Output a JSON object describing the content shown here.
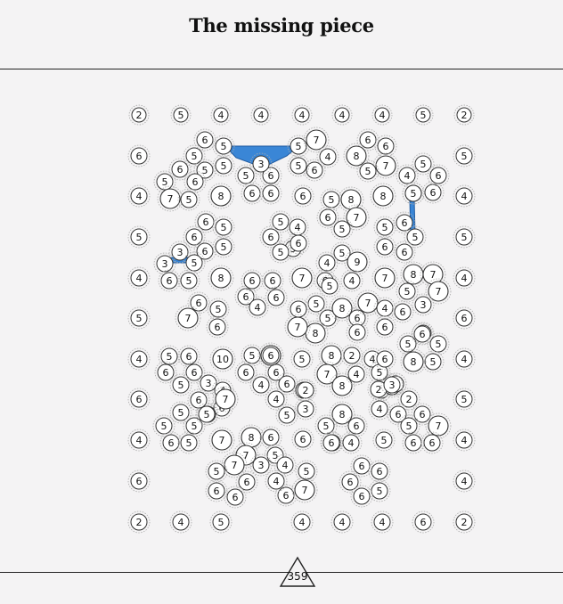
{
  "title": "The missing piece",
  "page_number": "359",
  "bridge_color": "#3a86d6",
  "border_values": {
    "top": [
      "2",
      "5",
      "4",
      "4",
      "4",
      "4",
      "4",
      "5",
      "2"
    ],
    "left": [
      "6",
      "4",
      "5",
      "4",
      "5",
      "4",
      "6",
      "4",
      "6"
    ],
    "right": [
      "5",
      "4",
      "5",
      "4",
      "6",
      "4",
      "5",
      "4",
      "4"
    ],
    "bottom": [
      "2",
      "4",
      "5",
      "4",
      "4",
      "4",
      "6",
      "2"
    ]
  },
  "islands": [
    [
      "6",
      "5",
      "5",
      "5",
      "6",
      "5",
      "6",
      "5",
      "7",
      "5",
      "8",
      "6",
      "5",
      "6",
      "6",
      "5",
      "3",
      "5",
      "3",
      "6",
      "5",
      "8"
    ],
    [
      "5",
      "7",
      "4",
      "6",
      "5",
      "6",
      "5",
      "3",
      "6",
      "6",
      "6",
      "5",
      "8",
      "8",
      "6",
      "6",
      "8",
      "7",
      "5",
      "5",
      "6",
      "5",
      "6",
      "4",
      "5"
    ],
    [
      "7",
      "6",
      "5",
      "5",
      "6",
      "5",
      "6",
      "6",
      "5",
      "6",
      "4",
      "5",
      "5",
      "6",
      "5",
      "9",
      "4",
      "6",
      "4",
      "7",
      "8",
      "7",
      "7",
      "5",
      "3"
    ],
    [
      "6",
      "5",
      "6",
      "7",
      "6",
      "6",
      "6",
      "4",
      "6",
      "7",
      "5",
      "6",
      "5",
      "8",
      "5",
      "6",
      "7",
      "4",
      "6",
      "6",
      "8",
      "7",
      "6",
      "5"
    ],
    [
      "5",
      "6",
      "6",
      "6",
      "5",
      "10",
      "5",
      "7",
      "6",
      "6",
      "4",
      "6",
      "6",
      "5",
      "4",
      "5",
      "8",
      "2",
      "7",
      "8",
      "4",
      "4",
      "2",
      "3",
      "3",
      "5"
    ],
    [
      "5",
      "6",
      "5",
      "5",
      "8",
      "6",
      "6",
      "2",
      "3",
      "2",
      "4",
      "8",
      "6",
      "5",
      "5",
      "4",
      "2",
      "3",
      "5",
      "3",
      "4",
      "6",
      "7",
      "5"
    ],
    [
      "5",
      "6",
      "5",
      "5",
      "7",
      "6",
      "5",
      "5",
      "8",
      "6",
      "5",
      "6",
      "7",
      "7",
      "3",
      "4",
      "5",
      "6",
      "7",
      "6",
      "5",
      "6",
      "6",
      "4",
      "5",
      "6",
      "6",
      "5",
      "7",
      "6"
    ]
  ]
}
